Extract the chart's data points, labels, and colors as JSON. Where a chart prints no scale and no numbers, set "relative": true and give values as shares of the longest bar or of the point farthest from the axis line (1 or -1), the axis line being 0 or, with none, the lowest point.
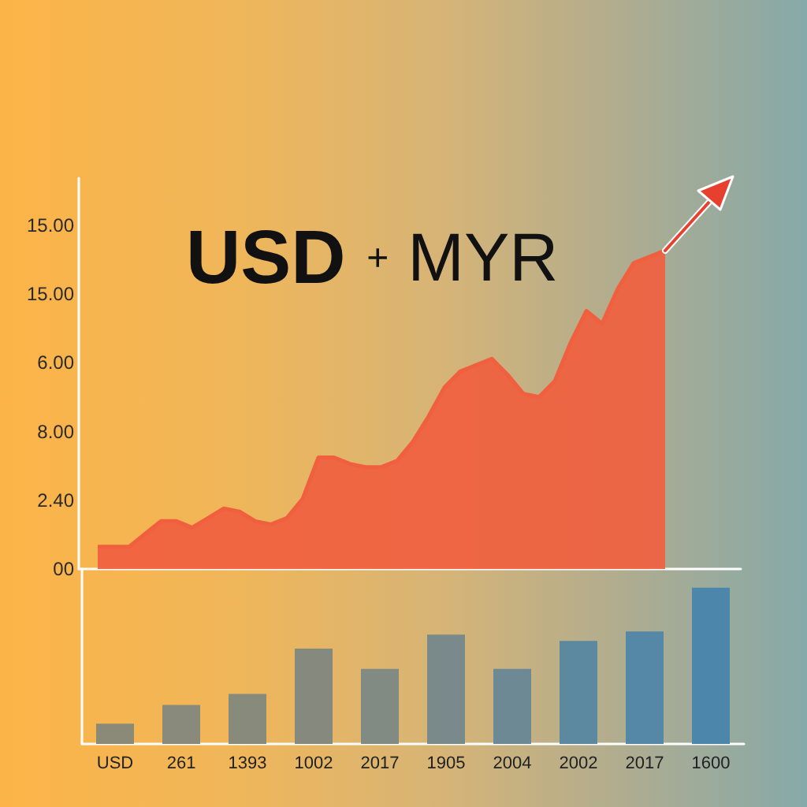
{
  "chart_data": [
    {
      "type": "area",
      "title": "USD + MYR",
      "categories": [
        null,
        null,
        null,
        null,
        null,
        null,
        null,
        null,
        null,
        null,
        null,
        null,
        null,
        null,
        null,
        null,
        null,
        null,
        null,
        null,
        null,
        null,
        null,
        null,
        null,
        null,
        null,
        null,
        null,
        null,
        null,
        null,
        null,
        null,
        null,
        null,
        null
      ],
      "values": [
        0.07,
        0.07,
        0.07,
        0.11,
        0.15,
        0.15,
        0.13,
        0.16,
        0.19,
        0.18,
        0.15,
        0.14,
        0.16,
        0.22,
        0.35,
        0.35,
        0.33,
        0.32,
        0.32,
        0.34,
        0.4,
        0.48,
        0.57,
        0.62,
        0.64,
        0.66,
        0.61,
        0.55,
        0.54,
        0.59,
        0.71,
        0.81,
        0.77,
        0.88,
        0.96,
        0.98,
        1
      ],
      "color": "#f0603f",
      "relative": true,
      "annotations": [
        "15.00",
        "15.00",
        "6.00",
        "8.00",
        "2.40",
        "00"
      ]
    },
    {
      "type": "bar",
      "categories": [
        "USD",
        "261",
        "1393",
        "1002",
        "2017",
        "1905",
        "2004",
        "2002",
        "2017",
        "1600"
      ],
      "values": [
        0.13,
        0.25,
        0.32,
        0.61,
        0.48,
        0.7,
        0.48,
        0.66,
        0.72,
        1
      ],
      "colors": [
        "#8b8a79",
        "#898a7b",
        "#888a7c",
        "#868a7e",
        "#818a83",
        "#7a8a8a",
        "#6c8994",
        "#5d89a0",
        "#5488a6",
        "#4c86aa"
      ],
      "relative": true
    }
  ]
}
